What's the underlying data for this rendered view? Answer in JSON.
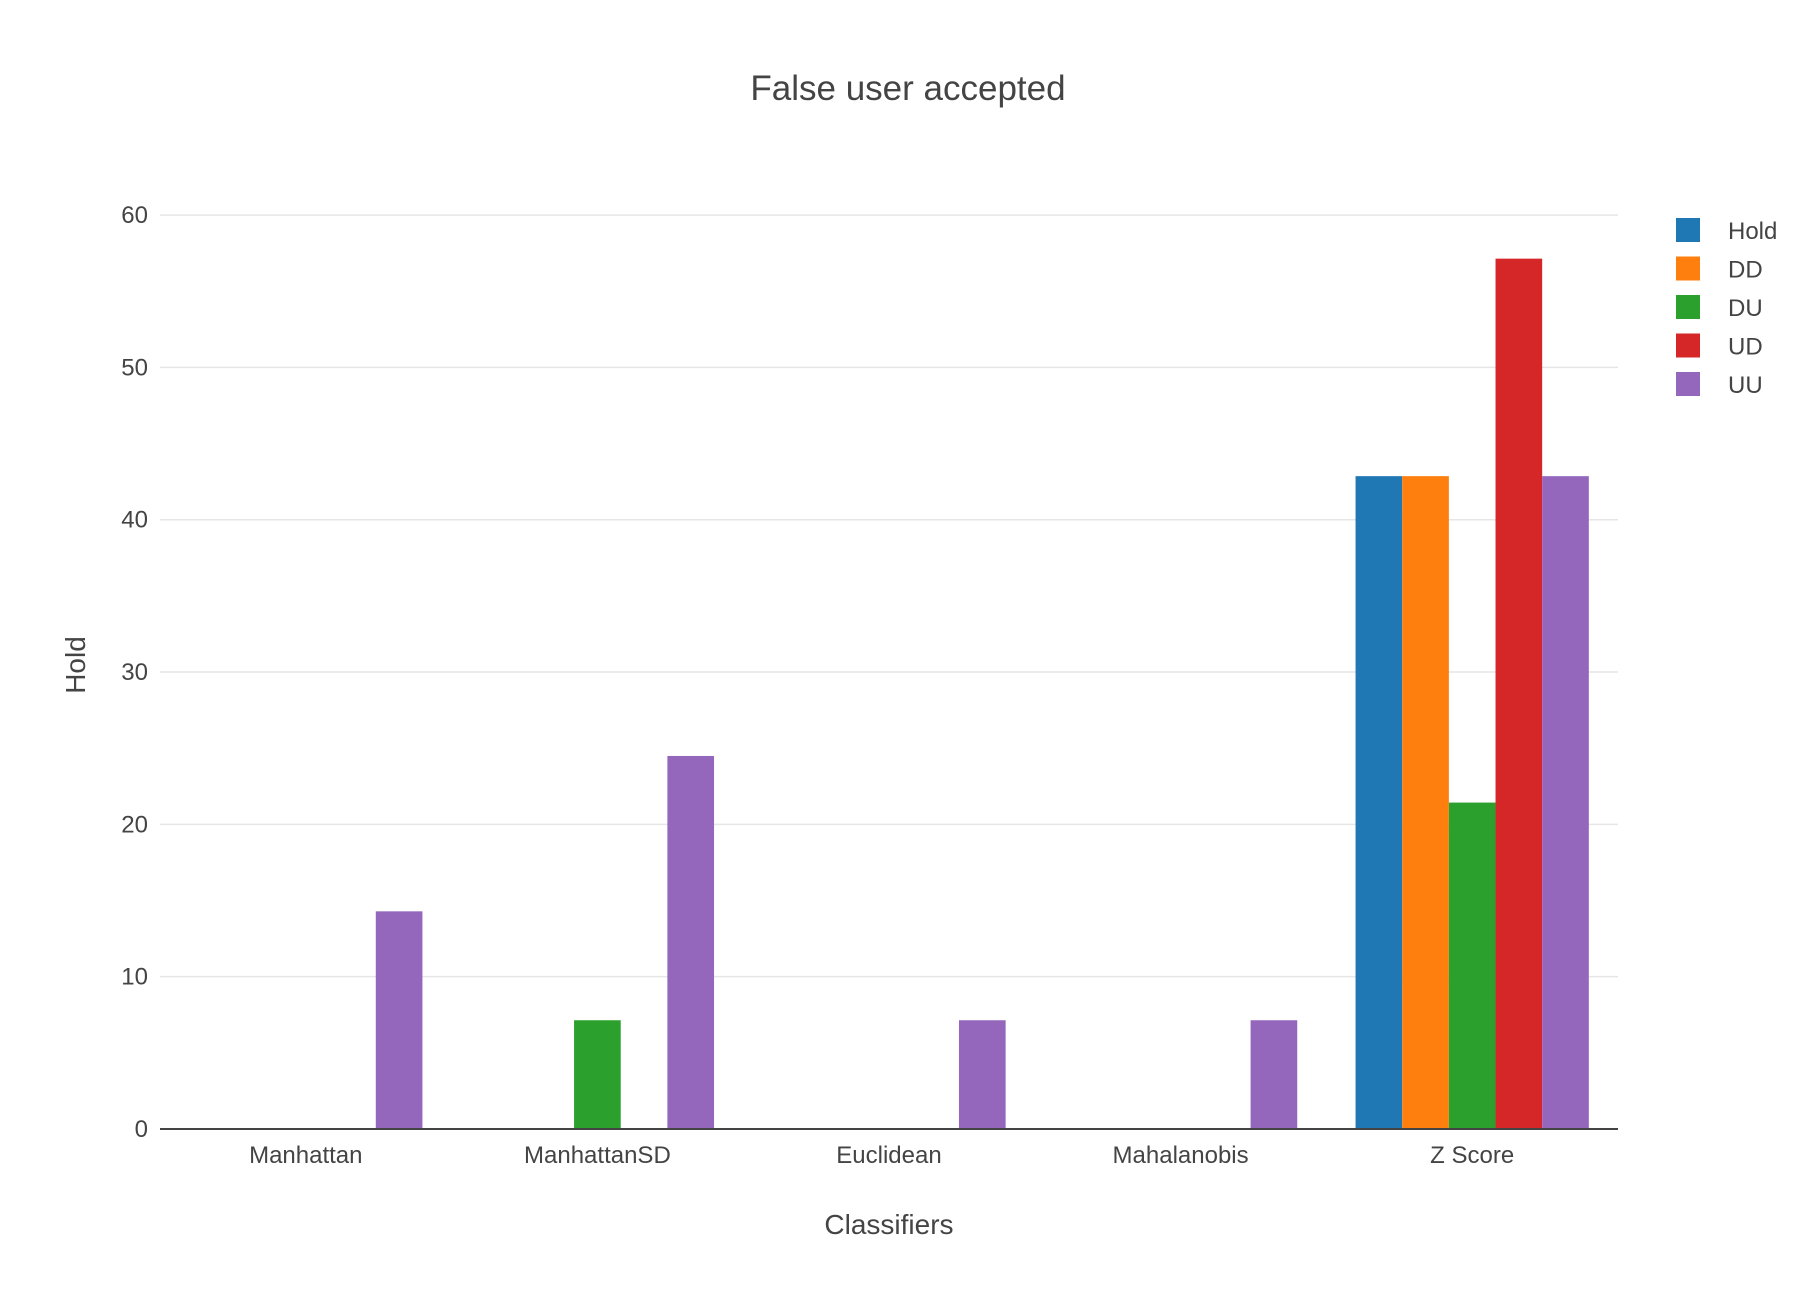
{
  "chart_data": {
    "type": "bar",
    "title": "False user accepted",
    "xlabel": "Classifiers",
    "ylabel": "Hold",
    "categories": [
      "Manhattan",
      "ManhattanSD",
      "Euclidean",
      "Mahalanobis",
      "Z Score"
    ],
    "series": [
      {
        "name": "Hold",
        "color": "#1f77b4",
        "values": [
          0,
          0,
          0,
          0,
          42.86
        ]
      },
      {
        "name": "DD",
        "color": "#ff7f0e",
        "values": [
          0,
          0,
          0,
          0,
          42.86
        ]
      },
      {
        "name": "DU",
        "color": "#2ca02c",
        "values": [
          0,
          7.14,
          0,
          0,
          21.43
        ]
      },
      {
        "name": "UD",
        "color": "#d62728",
        "values": [
          0,
          0,
          0,
          0,
          57.14
        ]
      },
      {
        "name": "UU",
        "color": "#9467bd",
        "values": [
          14.29,
          24.49,
          7.14,
          7.14,
          42.86
        ]
      }
    ],
    "ylim": [
      0,
      62.5
    ],
    "yticks": [
      0,
      10,
      20,
      30,
      40,
      50,
      60
    ],
    "grid": true,
    "legend_position": "top-right"
  }
}
